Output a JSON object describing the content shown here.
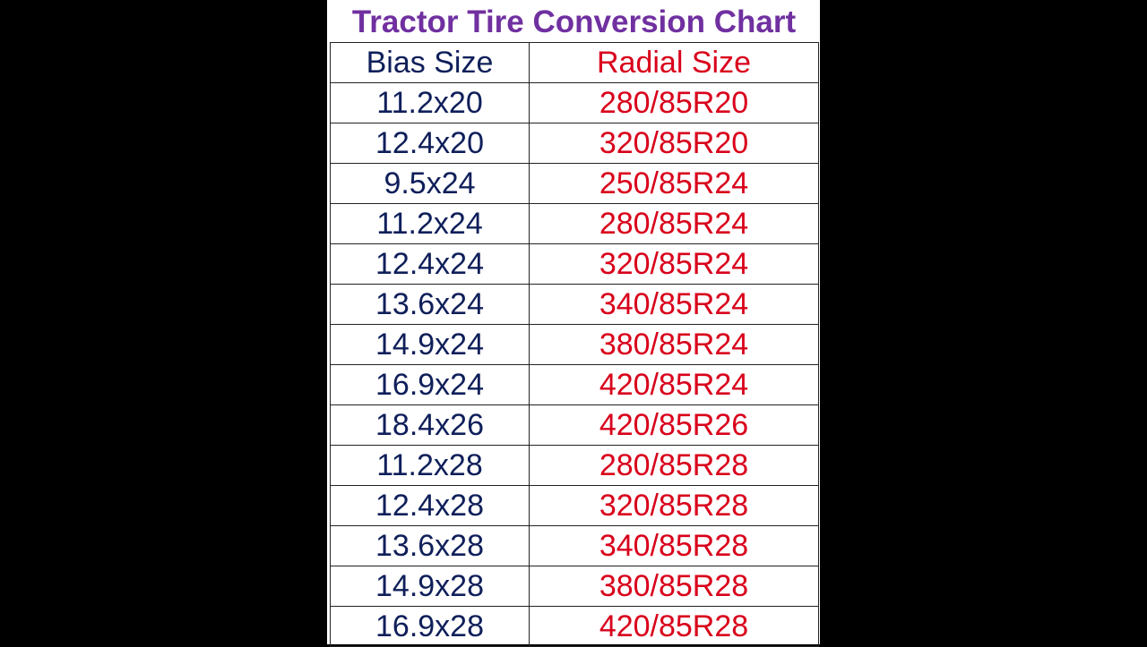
{
  "title": "Tractor Tire Conversion Chart",
  "colors": {
    "title": "#7030a0",
    "bias": "#0f1f5a",
    "radial": "#d9001b"
  },
  "columns": {
    "bias": "Bias Size",
    "radial": "Radial Size"
  },
  "rows": [
    {
      "bias": "11.2x20",
      "radial": "280/85R20"
    },
    {
      "bias": "12.4x20",
      "radial": "320/85R20"
    },
    {
      "bias": "9.5x24",
      "radial": "250/85R24"
    },
    {
      "bias": "11.2x24",
      "radial": "280/85R24"
    },
    {
      "bias": "12.4x24",
      "radial": "320/85R24"
    },
    {
      "bias": "13.6x24",
      "radial": "340/85R24"
    },
    {
      "bias": "14.9x24",
      "radial": "380/85R24"
    },
    {
      "bias": "16.9x24",
      "radial": "420/85R24"
    },
    {
      "bias": "18.4x26",
      "radial": "420/85R26"
    },
    {
      "bias": "11.2x28",
      "radial": "280/85R28"
    },
    {
      "bias": "12.4x28",
      "radial": "320/85R28"
    },
    {
      "bias": "13.6x28",
      "radial": "340/85R28"
    },
    {
      "bias": "14.9x28",
      "radial": "380/85R28"
    },
    {
      "bias": "16.9x28",
      "radial": "420/85R28"
    }
  ]
}
